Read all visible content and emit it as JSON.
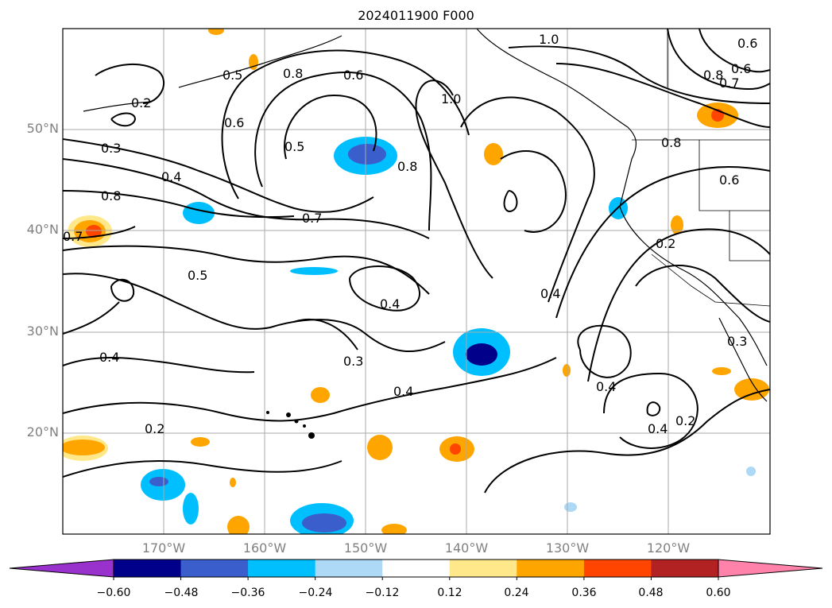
{
  "title": "2024011900 F000",
  "lat_labels": [
    "50°N",
    "40°N",
    "30°N",
    "20°N"
  ],
  "lon_labels": [
    "170°W",
    "160°W",
    "150°W",
    "140°W",
    "130°W",
    "120°W"
  ],
  "contour_labels": [
    {
      "text": "0.2"
    },
    {
      "text": "0.5"
    },
    {
      "text": "0.6"
    },
    {
      "text": "0.8"
    },
    {
      "text": "0.6"
    },
    {
      "text": "1.0"
    },
    {
      "text": "1.0"
    },
    {
      "text": "0.6"
    },
    {
      "text": "0.7"
    },
    {
      "text": "0.8"
    },
    {
      "text": "0.6"
    },
    {
      "text": "0.3"
    },
    {
      "text": "0.4"
    },
    {
      "text": "0.8"
    },
    {
      "text": "0.5"
    },
    {
      "text": "0.8"
    },
    {
      "text": "0.8"
    },
    {
      "text": "0.6"
    },
    {
      "text": "0.7"
    },
    {
      "text": "0.7"
    },
    {
      "text": "0.5"
    },
    {
      "text": "0.2"
    },
    {
      "text": "0.4"
    },
    {
      "text": "0.4"
    },
    {
      "text": "0.3"
    },
    {
      "text": "0.4"
    },
    {
      "text": "0.4"
    },
    {
      "text": "0.3"
    },
    {
      "text": "0.4"
    },
    {
      "text": "0.2"
    },
    {
      "text": "0.4"
    },
    {
      "text": "0.2"
    }
  ],
  "colorbar": {
    "ticks": [
      "−0.60",
      "−0.48",
      "−0.36",
      "−0.24",
      "−0.12",
      "0.12",
      "0.24",
      "0.36",
      "0.48",
      "0.60"
    ],
    "colors": [
      "#9932cc",
      "#00008b",
      "#3a5fcd",
      "#00bfff",
      "#add8f6",
      "#ffffff",
      "#ffe88a",
      "#ffa500",
      "#ff4500",
      "#b22222",
      "#ff82ab"
    ]
  }
}
